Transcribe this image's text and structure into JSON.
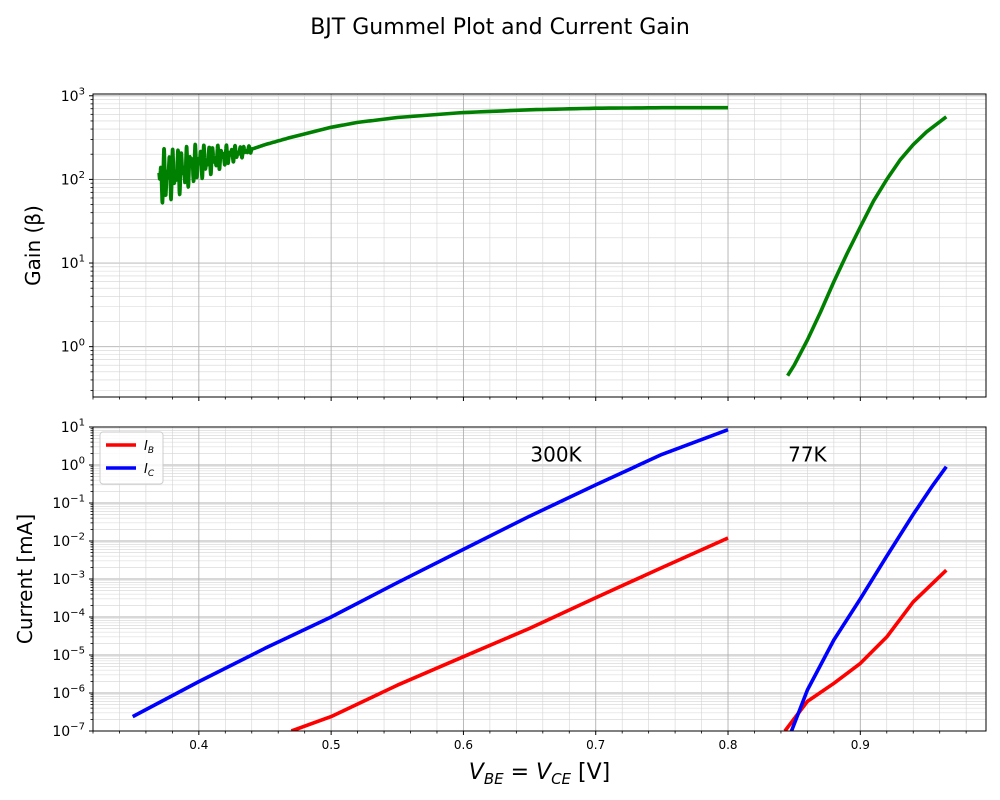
{
  "title": "BJT Gummel Plot and Current Gain",
  "chart_data": [
    {
      "type": "line",
      "ylabel": "Gain (β)",
      "xlim": [
        0.32,
        0.995
      ],
      "ylim": [
        0.25,
        1050
      ],
      "yscale": "log",
      "grid": true,
      "ytick_values": [
        1,
        10,
        100,
        1000
      ],
      "ytick_labels": [
        {
          "base": "10",
          "exp": "0"
        },
        {
          "base": "10",
          "exp": "1"
        },
        {
          "base": "10",
          "exp": "2"
        },
        {
          "base": "10",
          "exp": "3"
        }
      ],
      "series": [
        {
          "color": "#008000",
          "x": [
            0.37,
            0.38,
            0.39,
            0.4,
            0.41,
            0.42,
            0.43,
            0.44,
            0.45,
            0.47,
            0.5,
            0.52,
            0.55,
            0.6,
            0.65,
            0.7,
            0.75,
            0.8
          ],
          "y": [
            100,
            120,
            135,
            160,
            175,
            190,
            210,
            230,
            260,
            320,
            420,
            480,
            550,
            630,
            680,
            710,
            720,
            720
          ],
          "noise_until": 0.44
        },
        {
          "color": "#008000",
          "x": [
            0.845,
            0.85,
            0.86,
            0.87,
            0.88,
            0.89,
            0.9,
            0.91,
            0.92,
            0.93,
            0.94,
            0.95,
            0.965
          ],
          "y": [
            0.45,
            0.6,
            1.2,
            2.6,
            6,
            13,
            27,
            55,
            100,
            170,
            260,
            370,
            560
          ]
        }
      ]
    },
    {
      "type": "line",
      "xlabel": "V_BE = V_CE [V]",
      "xlabel_parts": {
        "v1": "V",
        "s1": "BE",
        "eq": " = ",
        "v2": "V",
        "s2": "CE",
        "unit": " [V]"
      },
      "ylabel": "Current [mA]",
      "xlim": [
        0.32,
        0.995
      ],
      "ylim": [
        1e-07,
        10
      ],
      "yscale": "log",
      "grid": true,
      "xtick_values": [
        0.4,
        0.5,
        0.6,
        0.7,
        0.8,
        0.9
      ],
      "xtick_labels": [
        "0.4",
        "0.5",
        "0.6",
        "0.7",
        "0.8",
        "0.9"
      ],
      "ytick_values": [
        1e-07,
        1e-06,
        1e-05,
        0.0001,
        0.001,
        0.01,
        0.1,
        1,
        10
      ],
      "ytick_labels": [
        {
          "base": "10",
          "exp": "−7"
        },
        {
          "base": "10",
          "exp": "−6"
        },
        {
          "base": "10",
          "exp": "−5"
        },
        {
          "base": "10",
          "exp": "−4"
        },
        {
          "base": "10",
          "exp": "−3"
        },
        {
          "base": "10",
          "exp": "−2"
        },
        {
          "base": "10",
          "exp": "−1"
        },
        {
          "base": "10",
          "exp": "0"
        },
        {
          "base": "10",
          "exp": "1"
        }
      ],
      "legend": {
        "placement": "upper-left",
        "entries": [
          {
            "label": "I",
            "sub": "B",
            "color": "#ff0000"
          },
          {
            "label": "I",
            "sub": "C",
            "color": "#0000ff"
          }
        ]
      },
      "annotations": [
        {
          "text": "300K",
          "x": 0.67,
          "y": 1.8
        },
        {
          "text": "77K",
          "x": 0.86,
          "y": 1.8
        }
      ],
      "series": [
        {
          "name": "I_B",
          "color": "#ff0000",
          "x": [
            0.47,
            0.5,
            0.55,
            0.6,
            0.65,
            0.7,
            0.75,
            0.8
          ],
          "y": [
            1e-07,
            2.4e-07,
            1.6e-06,
            9e-06,
            5e-05,
            0.00032,
            0.002,
            0.012
          ]
        },
        {
          "name": "I_C",
          "color": "#0000ff",
          "x": [
            0.35,
            0.4,
            0.45,
            0.5,
            0.55,
            0.6,
            0.65,
            0.7,
            0.75,
            0.8
          ],
          "y": [
            2.4e-07,
            2e-06,
            1.5e-05,
            0.0001,
            0.0008,
            0.006,
            0.045,
            0.3,
            1.9,
            8.5
          ]
        },
        {
          "name": "I_B",
          "color": "#ff0000",
          "x": [
            0.843,
            0.86,
            0.88,
            0.9,
            0.92,
            0.94,
            0.965
          ],
          "y": [
            1e-07,
            6e-07,
            1.8e-06,
            6e-06,
            3e-05,
            0.00025,
            0.0017
          ]
        },
        {
          "name": "I_C",
          "color": "#0000ff",
          "x": [
            0.848,
            0.86,
            0.88,
            0.9,
            0.92,
            0.94,
            0.955,
            0.965
          ],
          "y": [
            1e-07,
            1.2e-06,
            2.5e-05,
            0.0003,
            0.004,
            0.05,
            0.3,
            0.9
          ]
        }
      ]
    }
  ]
}
